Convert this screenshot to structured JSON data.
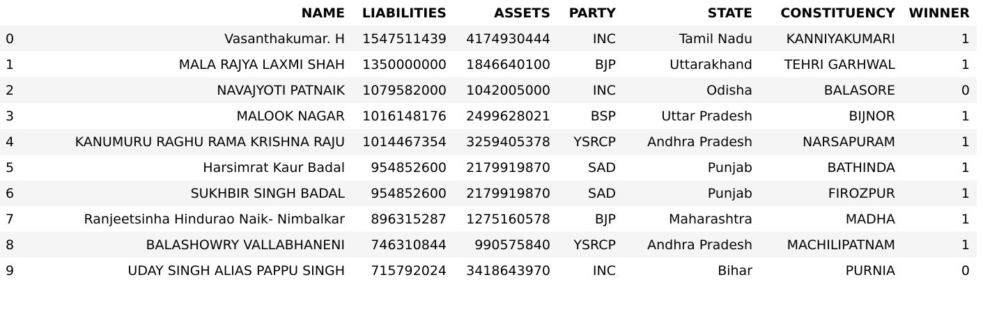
{
  "table": {
    "columns": [
      "NAME",
      "LIABILITIES",
      "ASSETS",
      "PARTY",
      "STATE",
      "CONSTITUENCY",
      "WINNER"
    ],
    "rows": [
      {
        "index": "0",
        "cells": [
          "Vasanthakumar. H",
          "1547511439",
          "4174930444",
          "INC",
          "Tamil Nadu",
          "KANNIYAKUMARI",
          "1"
        ]
      },
      {
        "index": "1",
        "cells": [
          "MALA RAJYA LAXMI SHAH",
          "1350000000",
          "1846640100",
          "BJP",
          "Uttarakhand",
          "TEHRI GARHWAL",
          "1"
        ]
      },
      {
        "index": "2",
        "cells": [
          "NAVAJYOTI PATNAIK",
          "1079582000",
          "1042005000",
          "INC",
          "Odisha",
          "BALASORE",
          "0"
        ]
      },
      {
        "index": "3",
        "cells": [
          "MALOOK NAGAR",
          "1016148176",
          "2499628021",
          "BSP",
          "Uttar Pradesh",
          "BIJNOR",
          "1"
        ]
      },
      {
        "index": "4",
        "cells": [
          "KANUMURU RAGHU RAMA KRISHNA RAJU",
          "1014467354",
          "3259405378",
          "YSRCP",
          "Andhra Pradesh",
          "NARSAPURAM",
          "1"
        ]
      },
      {
        "index": "5",
        "cells": [
          "Harsimrat Kaur Badal",
          "954852600",
          "2179919870",
          "SAD",
          "Punjab",
          "BATHINDA",
          "1"
        ]
      },
      {
        "index": "6",
        "cells": [
          "SUKHBIR SINGH BADAL",
          "954852600",
          "2179919870",
          "SAD",
          "Punjab",
          "FIROZPUR",
          "1"
        ]
      },
      {
        "index": "7",
        "cells": [
          "Ranjeetsinha Hindurao Naik- Nimbalkar",
          "896315287",
          "1275160578",
          "BJP",
          "Maharashtra",
          "MADHA",
          "1"
        ]
      },
      {
        "index": "8",
        "cells": [
          "BALASHOWRY VALLABHANENI",
          "746310844",
          "990575840",
          "YSRCP",
          "Andhra Pradesh",
          "MACHILIPATNAM",
          "1"
        ]
      },
      {
        "index": "9",
        "cells": [
          "UDAY SINGH ALIAS PAPPU SINGH",
          "715792024",
          "3418643970",
          "INC",
          "Bihar",
          "PURNIA",
          "0"
        ]
      }
    ]
  }
}
